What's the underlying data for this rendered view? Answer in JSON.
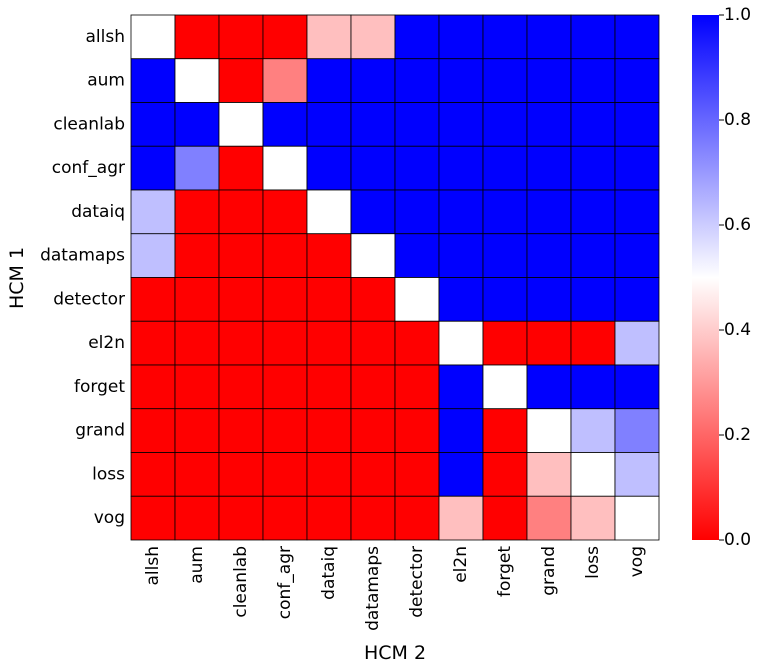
{
  "chart_data": {
    "type": "heatmap",
    "title": "",
    "xlabel": "HCM 2",
    "ylabel": "HCM 1",
    "x_categories": [
      "allsh",
      "aum",
      "cleanlab",
      "conf_agr",
      "dataiq",
      "datamaps",
      "detector",
      "el2n",
      "forget",
      "grand",
      "loss",
      "vog"
    ],
    "y_categories": [
      "allsh",
      "aum",
      "cleanlab",
      "conf_agr",
      "dataiq",
      "datamaps",
      "detector",
      "el2n",
      "forget",
      "grand",
      "loss",
      "vog"
    ],
    "values": [
      [
        0.5,
        0.0,
        0.0,
        0.0,
        0.375,
        0.375,
        1.0,
        1.0,
        1.0,
        1.0,
        1.0,
        1.0
      ],
      [
        1.0,
        0.5,
        0.0,
        0.25,
        1.0,
        1.0,
        1.0,
        1.0,
        1.0,
        1.0,
        1.0,
        1.0
      ],
      [
        1.0,
        1.0,
        0.5,
        1.0,
        1.0,
        1.0,
        1.0,
        1.0,
        1.0,
        1.0,
        1.0,
        1.0
      ],
      [
        1.0,
        0.75,
        0.0,
        0.5,
        1.0,
        1.0,
        1.0,
        1.0,
        1.0,
        1.0,
        1.0,
        1.0
      ],
      [
        0.625,
        0.0,
        0.0,
        0.0,
        0.5,
        1.0,
        1.0,
        1.0,
        1.0,
        1.0,
        1.0,
        1.0
      ],
      [
        0.625,
        0.0,
        0.0,
        0.0,
        0.0,
        0.5,
        1.0,
        1.0,
        1.0,
        1.0,
        1.0,
        1.0
      ],
      [
        0.0,
        0.0,
        0.0,
        0.0,
        0.0,
        0.0,
        0.5,
        1.0,
        1.0,
        1.0,
        1.0,
        1.0
      ],
      [
        0.0,
        0.0,
        0.0,
        0.0,
        0.0,
        0.0,
        0.0,
        0.5,
        0.0,
        0.0,
        0.0,
        0.625
      ],
      [
        0.0,
        0.0,
        0.0,
        0.0,
        0.0,
        0.0,
        0.0,
        1.0,
        0.5,
        1.0,
        1.0,
        1.0
      ],
      [
        0.0,
        0.0,
        0.0,
        0.0,
        0.0,
        0.0,
        0.0,
        1.0,
        0.0,
        0.5,
        0.625,
        0.75
      ],
      [
        0.0,
        0.0,
        0.0,
        0.0,
        0.0,
        0.0,
        0.0,
        1.0,
        0.0,
        0.375,
        0.5,
        0.625
      ],
      [
        0.0,
        0.0,
        0.0,
        0.0,
        0.0,
        0.0,
        0.0,
        0.375,
        0.0,
        0.25,
        0.375,
        0.5
      ]
    ],
    "colormap": "bwr_r",
    "vmin": 0.0,
    "vmax": 1.0,
    "colorbar_ticks": [
      "0.0",
      "0.2",
      "0.4",
      "0.6",
      "0.8",
      "1.0"
    ],
    "colors": {
      "low": "#ff0000",
      "mid": "#ffffff",
      "high": "#0000ff",
      "grid": "#000000"
    }
  }
}
